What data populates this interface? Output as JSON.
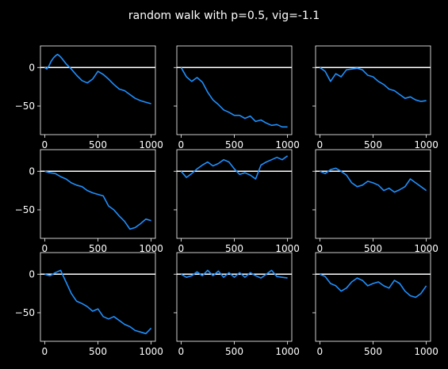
{
  "title": "random walk with p=0.5, vig=-1.1",
  "colors": {
    "background": "#000000",
    "line": "#1E90FF",
    "zero_line": "#FFFFFF",
    "frame": "#FFFFFF",
    "text": "#FFFFFF"
  },
  "chart_data": {
    "type": "line",
    "layout": "3x3 grid, shared y-axis per row",
    "xlim": [
      -40,
      1040
    ],
    "xticks": [
      0,
      500,
      1000
    ],
    "xtick_labels": [
      "0",
      "500",
      "1000"
    ],
    "yticks": [
      0,
      -50
    ],
    "ytick_labels": [
      "0",
      "−50"
    ],
    "rows": [
      {
        "ylim": [
          -87,
          28
        ]
      },
      {
        "ylim": [
          -87,
          28
        ]
      },
      {
        "ylim": [
          -87,
          28
        ]
      }
    ],
    "reference_line": {
      "y": 0
    },
    "panels": [
      {
        "name": "",
        "x": [
          0,
          20,
          40,
          60,
          80,
          100,
          120,
          140,
          160,
          200,
          250,
          300,
          350,
          400,
          450,
          500,
          550,
          600,
          650,
          700,
          750,
          800,
          850,
          900,
          950,
          1000
        ],
        "y": [
          0,
          -2,
          2,
          8,
          12,
          15,
          17,
          15,
          12,
          5,
          -2,
          -10,
          -17,
          -20,
          -15,
          -5,
          -9,
          -15,
          -22,
          -28,
          -30,
          -35,
          -40,
          -43,
          -45,
          -47
        ]
      },
      {
        "name": "",
        "x": [
          0,
          50,
          100,
          150,
          200,
          250,
          300,
          350,
          400,
          450,
          500,
          550,
          600,
          650,
          700,
          750,
          800,
          850,
          900,
          950,
          1000
        ],
        "y": [
          0,
          -12,
          -18,
          -13,
          -19,
          -32,
          -42,
          -48,
          -55,
          -58,
          -62,
          -62,
          -66,
          -63,
          -70,
          -68,
          -72,
          -75,
          -74,
          -77,
          -77
        ]
      },
      {
        "name": "",
        "x": [
          0,
          50,
          100,
          150,
          200,
          250,
          300,
          350,
          400,
          450,
          500,
          550,
          600,
          650,
          700,
          750,
          800,
          850,
          900,
          950,
          1000
        ],
        "y": [
          0,
          -5,
          -18,
          -8,
          -12,
          -3,
          -2,
          -1,
          -3,
          -10,
          -12,
          -18,
          -22,
          -28,
          -30,
          -35,
          -40,
          -38,
          -42,
          -44,
          -43
        ]
      },
      {
        "name": "",
        "x": [
          0,
          50,
          100,
          150,
          200,
          250,
          300,
          350,
          400,
          450,
          500,
          550,
          600,
          650,
          700,
          750,
          800,
          850,
          900,
          950,
          1000
        ],
        "y": [
          0,
          -2,
          -3,
          -7,
          -10,
          -15,
          -18,
          -20,
          -25,
          -28,
          -30,
          -32,
          -45,
          -50,
          -58,
          -65,
          -75,
          -73,
          -68,
          -62,
          -64
        ]
      },
      {
        "name": "",
        "x": [
          0,
          50,
          100,
          150,
          200,
          250,
          300,
          350,
          400,
          450,
          500,
          550,
          600,
          650,
          700,
          750,
          800,
          850,
          900,
          950,
          1000
        ],
        "y": [
          0,
          -8,
          -3,
          3,
          8,
          12,
          7,
          10,
          15,
          12,
          3,
          -4,
          -2,
          -5,
          -10,
          8,
          12,
          15,
          18,
          15,
          20
        ]
      },
      {
        "name": "",
        "x": [
          0,
          50,
          100,
          150,
          200,
          250,
          300,
          350,
          400,
          450,
          500,
          550,
          600,
          650,
          700,
          750,
          800,
          850,
          900,
          950,
          1000
        ],
        "y": [
          0,
          -3,
          2,
          4,
          0,
          -5,
          -15,
          -20,
          -18,
          -13,
          -15,
          -18,
          -25,
          -22,
          -27,
          -24,
          -20,
          -10,
          -15,
          -20,
          -25
        ]
      },
      {
        "name": "",
        "x": [
          0,
          50,
          100,
          150,
          200,
          250,
          300,
          350,
          400,
          450,
          500,
          550,
          600,
          650,
          700,
          750,
          800,
          850,
          900,
          950,
          1000
        ],
        "y": [
          0,
          -2,
          2,
          5,
          -10,
          -25,
          -35,
          -38,
          -42,
          -48,
          -45,
          -55,
          -58,
          -55,
          -60,
          -65,
          -68,
          -73,
          -75,
          -77,
          -70
        ]
      },
      {
        "name": "",
        "x": [
          0,
          50,
          100,
          150,
          200,
          250,
          300,
          350,
          400,
          450,
          500,
          550,
          600,
          650,
          700,
          750,
          800,
          850,
          900,
          950,
          1000
        ],
        "y": [
          0,
          -4,
          -2,
          3,
          -2,
          5,
          -2,
          4,
          -4,
          2,
          -4,
          2,
          -4,
          2,
          -2,
          -5,
          0,
          5,
          -3,
          -4,
          -5
        ]
      },
      {
        "name": "",
        "x": [
          0,
          50,
          100,
          150,
          200,
          250,
          300,
          350,
          400,
          450,
          500,
          550,
          600,
          650,
          700,
          750,
          800,
          850,
          900,
          950,
          1000
        ],
        "y": [
          0,
          -3,
          -12,
          -15,
          -22,
          -18,
          -10,
          -5,
          -8,
          -15,
          -12,
          -10,
          -15,
          -18,
          -8,
          -12,
          -22,
          -28,
          -30,
          -25,
          -15
        ]
      }
    ]
  }
}
